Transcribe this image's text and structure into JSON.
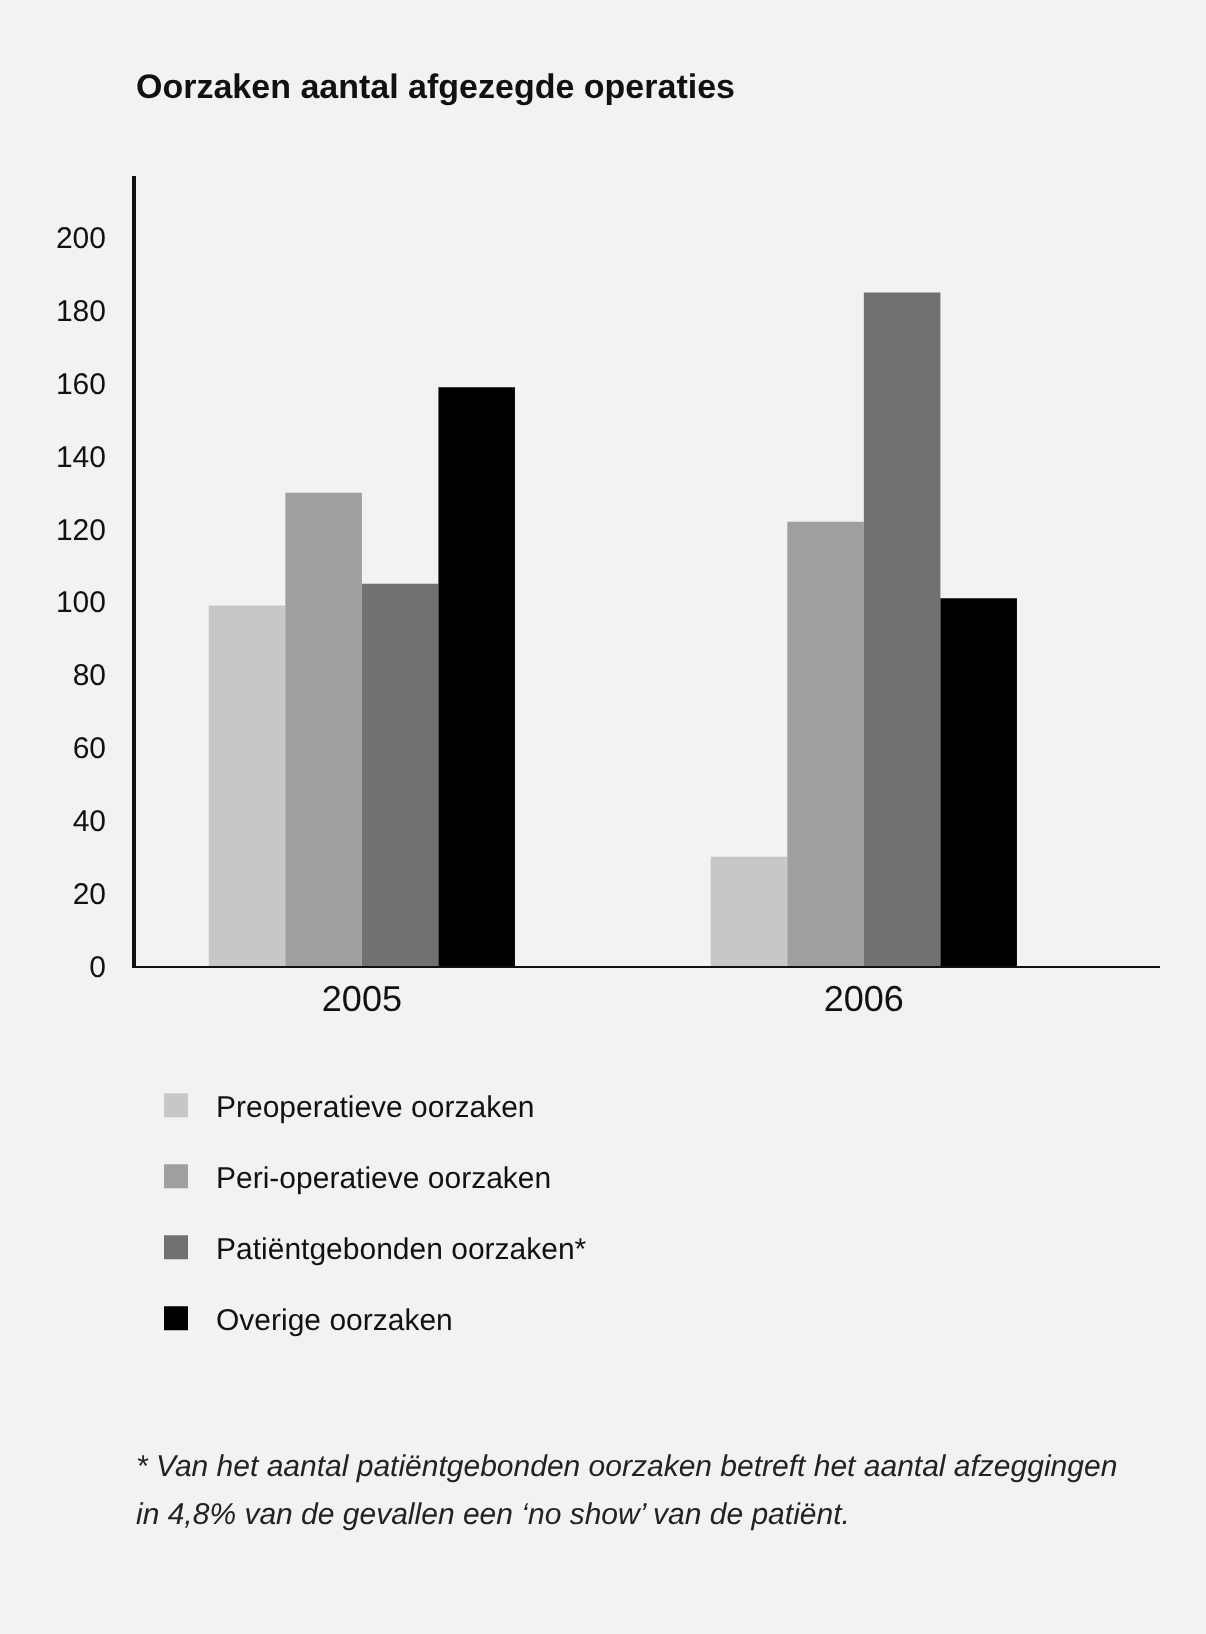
{
  "chart_data": {
    "type": "bar",
    "title": "Oorzaken aantal afgezegde operaties",
    "categories": [
      "2005",
      "2006"
    ],
    "series": [
      {
        "name": "Preoperatieve oorzaken",
        "color": "#c6c7c9",
        "values": [
          99,
          30
        ]
      },
      {
        "name": "Peri-operatieve oorzaken",
        "color": "#9e9fa1",
        "values": [
          130,
          122
        ]
      },
      {
        "name": "Patiëntgebonden oorzaken*",
        "color": "#707173",
        "values": [
          105,
          185
        ]
      },
      {
        "name": "Overige oorzaken",
        "color": "#000000",
        "values": [
          159,
          101
        ]
      }
    ],
    "ylim": [
      0,
      217
    ],
    "yticks": [
      0,
      20,
      40,
      60,
      80,
      100,
      120,
      140,
      160,
      180,
      200
    ],
    "grid": false,
    "legend": "bottom",
    "annotations": [
      "* Van het aantal patiëntgebonden oorzaken betreft het aantal afzeggingen in 4,8% van de gevallen een ‘no show’ van de patiënt."
    ]
  }
}
